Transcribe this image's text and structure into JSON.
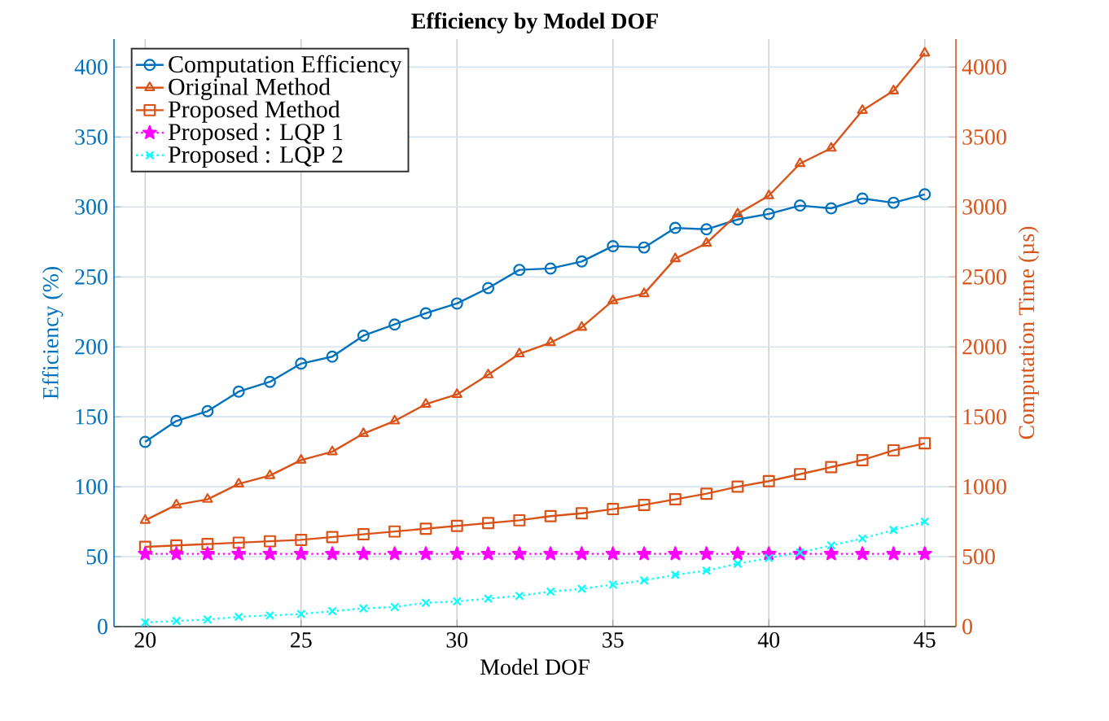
{
  "chart_data": {
    "type": "line",
    "title": "Efficiency by Model DOF",
    "xlabel": "Model DOF",
    "ylabel": "Efficiency (%)",
    "y2label": "Computation Time (µs)",
    "x": [
      20,
      21,
      22,
      23,
      24,
      25,
      26,
      27,
      28,
      29,
      30,
      31,
      32,
      33,
      34,
      35,
      36,
      37,
      38,
      39,
      40,
      41,
      42,
      43,
      44,
      45
    ],
    "series": [
      {
        "name": "Computation Efficiency",
        "color": "#0072bd",
        "axis": "y",
        "marker": "circle",
        "line_style": "solid",
        "values": [
          132,
          147,
          154,
          168,
          175,
          188,
          193,
          208,
          216,
          224,
          231,
          242,
          255,
          256,
          261,
          272,
          271,
          285,
          284,
          291,
          295,
          301,
          299,
          306,
          303,
          309
        ]
      },
      {
        "name": "Original Method",
        "color": "#d95319",
        "axis": "y2",
        "marker": "triangle",
        "line_style": "solid",
        "values": [
          760,
          870,
          910,
          1020,
          1080,
          1190,
          1250,
          1380,
          1470,
          1590,
          1660,
          1800,
          1950,
          2030,
          2140,
          2330,
          2380,
          2630,
          2740,
          2950,
          3080,
          3310,
          3420,
          3690,
          3830,
          4100
        ]
      },
      {
        "name": "Proposed Method",
        "color": "#d95319",
        "axis": "y2",
        "marker": "square",
        "line_style": "solid",
        "values": [
          570,
          580,
          590,
          600,
          610,
          620,
          640,
          660,
          680,
          700,
          720,
          740,
          760,
          790,
          810,
          840,
          870,
          910,
          950,
          1000,
          1040,
          1090,
          1140,
          1190,
          1260,
          1310
        ]
      },
      {
        "name": "Proposed : LQP 1",
        "color": "#ff00ff",
        "axis": "y2",
        "marker": "star",
        "line_style": "dotted",
        "values": [
          520,
          520,
          520,
          520,
          520,
          520,
          520,
          520,
          520,
          520,
          520,
          520,
          520,
          520,
          520,
          520,
          520,
          520,
          520,
          520,
          520,
          520,
          520,
          520,
          520,
          520
        ]
      },
      {
        "name": "Proposed : LQP 2",
        "color": "#00ffff",
        "axis": "y2",
        "marker": "cross",
        "line_style": "dotted",
        "values": [
          30,
          40,
          50,
          70,
          80,
          90,
          110,
          130,
          140,
          170,
          180,
          200,
          220,
          250,
          270,
          300,
          330,
          370,
          400,
          450,
          490,
          530,
          580,
          630,
          690,
          750
        ]
      }
    ],
    "xlim": [
      19,
      46
    ],
    "xticks": [
      20,
      25,
      30,
      35,
      40,
      45
    ],
    "ylim": [
      0,
      420
    ],
    "yticks": [
      0,
      50,
      100,
      150,
      200,
      250,
      300,
      350,
      400
    ],
    "y2lim": [
      0,
      4200
    ],
    "y2ticks": [
      0,
      500,
      1000,
      1500,
      2000,
      2500,
      3000,
      3500,
      4000
    ],
    "grid": true,
    "legend": "top left"
  }
}
